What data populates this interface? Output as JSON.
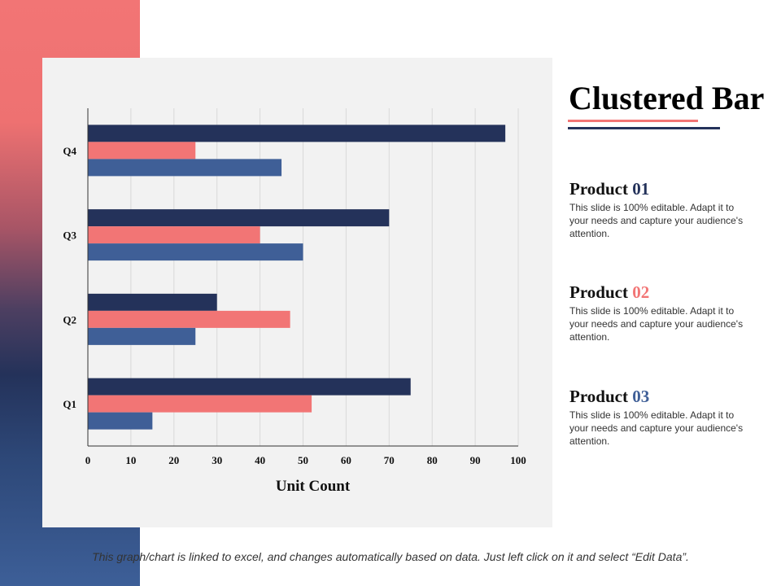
{
  "colors": {
    "product_01": "#24325a",
    "product_02": "#f27575",
    "product_03": "#3f5f97",
    "panel": "#f2f2f2"
  },
  "slide": {
    "title": "Clustered Bar",
    "footer_note": "This graph/chart is linked to excel, and changes automatically based on data. Just left click on it and select “Edit Data”."
  },
  "legend": [
    {
      "label": "Product",
      "number": "01",
      "color": "#24325a",
      "description": "This slide is 100% editable. Adapt it to your needs and capture your audience's attention."
    },
    {
      "label": "Product",
      "number": "02",
      "color": "#f27575",
      "description": "This slide is 100% editable. Adapt it to your needs and capture your audience's attention."
    },
    {
      "label": "Product",
      "number": "03",
      "color": "#3f5f97",
      "description": "This slide is 100% editable. Adapt it to your needs and capture your audience's attention."
    }
  ],
  "chart_data": {
    "type": "bar",
    "orientation": "horizontal",
    "categories": [
      "Q1",
      "Q2",
      "Q3",
      "Q4"
    ],
    "series": [
      {
        "name": "Product 01",
        "values": [
          75,
          30,
          70,
          97
        ]
      },
      {
        "name": "Product 02",
        "values": [
          52,
          47,
          40,
          25
        ]
      },
      {
        "name": "Product 03",
        "values": [
          15,
          25,
          50,
          45
        ]
      }
    ],
    "xlabel": "Unit Count",
    "ylabel": "",
    "xlim": [
      0,
      100
    ],
    "xticks": [
      0,
      10,
      20,
      30,
      40,
      50,
      60,
      70,
      80,
      90,
      100
    ],
    "grid": true
  }
}
